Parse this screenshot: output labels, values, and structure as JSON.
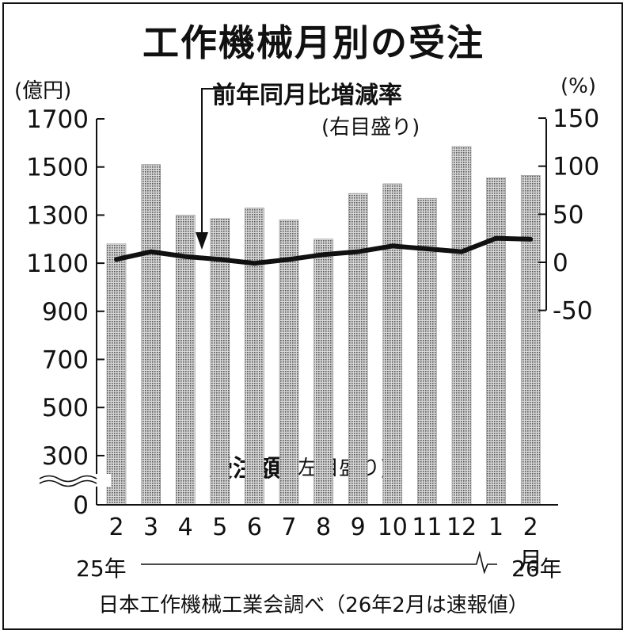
{
  "title": "工作機械月別の受注",
  "left_axis_unit": "(億円)",
  "right_axis_unit": "(%)",
  "line_callout": "前年同月比増減率",
  "line_callout_sub": "(右目盛り)",
  "bar_callout": "受注額",
  "bar_callout_sub": "(左目盛り)",
  "source": "日本工作機械工業会調べ（26年2月は速報値）",
  "year_start": "25年",
  "year_end": "26年",
  "chart_data": {
    "type": "bar",
    "categories": [
      "2",
      "3",
      "4",
      "5",
      "6",
      "7",
      "8",
      "9",
      "10",
      "11",
      "12",
      "1",
      "2月"
    ],
    "left_axis": {
      "ticks": [
        "0",
        "300",
        "500",
        "700",
        "900",
        "1100",
        "1300",
        "1500",
        "1700"
      ],
      "ylim": [
        200,
        1700
      ],
      "axis_break": true
    },
    "right_axis": {
      "ticks": [
        "-50",
        "0",
        "50",
        "100",
        "150"
      ],
      "ylim": [
        -50,
        150
      ]
    },
    "series": [
      {
        "values": [
          1180,
          1510,
          1300,
          1285,
          1330,
          1280,
          1200,
          1390,
          1430,
          1370,
          1585,
          1455,
          1465
        ],
        "axis": "left",
        "kind": "bar"
      },
      {
        "values": [
          3,
          11,
          6,
          3,
          -1,
          3,
          8,
          11,
          17,
          14,
          11,
          25,
          24
        ],
        "axis": "right",
        "kind": "line"
      }
    ],
    "colors": {
      "bar": "#9a9a9a",
      "line": "#111111"
    }
  }
}
